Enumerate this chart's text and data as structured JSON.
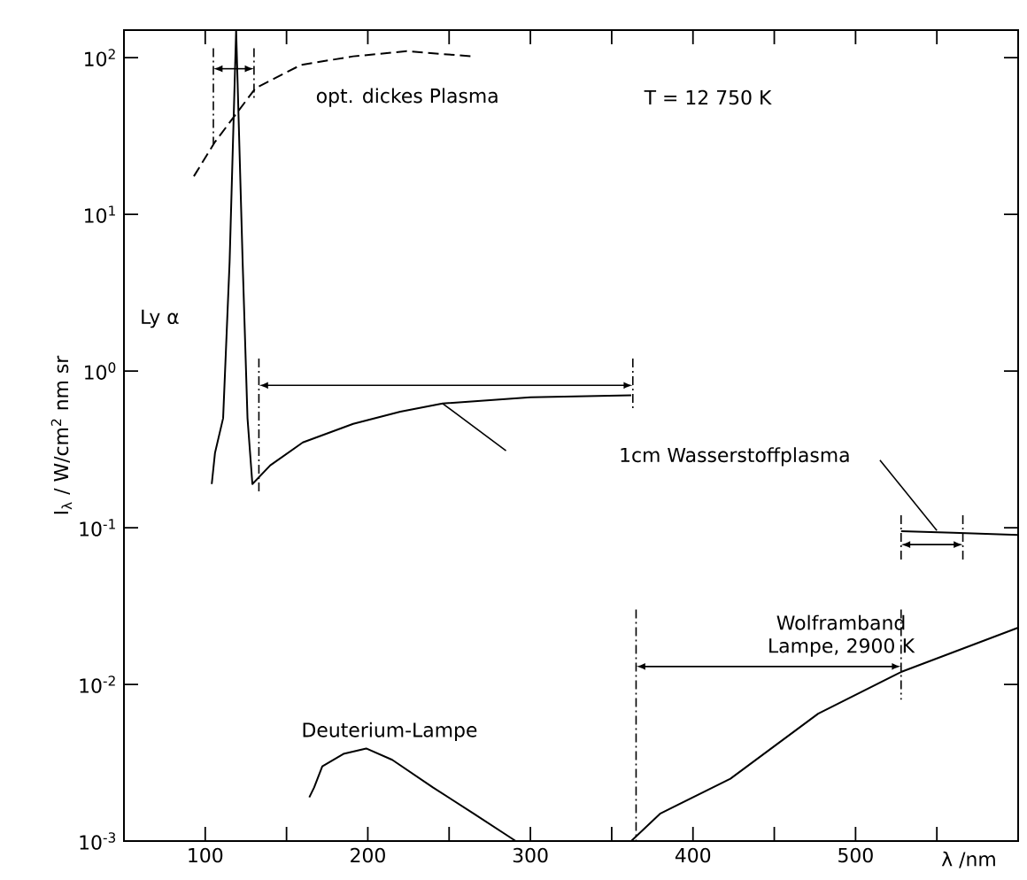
{
  "chart_data": {
    "type": "line",
    "ylabel": "I$_{λ}$ / W/cm$^{2}$ nm sr",
    "xlabel": "λ /nm",
    "log": "y",
    "xlim": [
      50,
      600
    ],
    "ylim": [
      0.001,
      150
    ],
    "xticks": [
      100,
      {
        "value": 150,
        "label": null
      },
      200,
      {
        "value": 250,
        "label": null
      },
      300,
      {
        "value": 350,
        "label": null
      },
      400,
      {
        "value": 450,
        "label": null
      },
      500,
      {
        "value": 550,
        "label": null
      }
    ],
    "yticks": [
      {
        "value": 0.001,
        "label": "10$^{-3}$"
      },
      {
        "value": 0.01,
        "label": "10$^{-2}$"
      },
      {
        "value": 0.1,
        "label": "10$^{-1}$"
      },
      {
        "value": 1,
        "label": "10$^{0}$"
      },
      {
        "value": 10,
        "label": "10$^{1}$"
      },
      {
        "value": 100,
        "label": "10$^{2}$"
      }
    ],
    "series": [
      {
        "color": "#000000",
        "line_style": "dashed",
        "x": [
          93,
          106,
          131,
          159,
          191,
          224,
          264
        ],
        "values": [
          17.5,
          29,
          64,
          90,
          102,
          110,
          102
        ]
      },
      {
        "color": "#000000",
        "line_style": "solid",
        "x": [
          104,
          106,
          111,
          115,
          119,
          123,
          126,
          129,
          140,
          160,
          191,
          220,
          246,
          300,
          362,
          400,
          528,
          560,
          600
        ],
        "values": [
          0.19,
          0.3,
          0.5,
          5,
          150,
          5,
          0.5,
          0.19,
          0.25,
          0.35,
          0.46,
          0.55,
          0.62,
          0.68,
          0.7,
          null,
          0.095,
          0.093,
          0.09
        ]
      },
      {
        "color": "#000000",
        "line_style": "solid",
        "x": [
          164,
          167,
          172,
          185,
          199,
          215,
          240,
          265,
          291
        ],
        "values": [
          0.0019,
          0.0022,
          0.003,
          0.0036,
          0.0039,
          0.0033,
          0.0022,
          0.0015,
          0.001
        ]
      },
      {
        "color": "#000000",
        "line_style": "solid",
        "x": [
          362,
          380,
          423,
          477,
          528,
          600
        ],
        "values": [
          0.001,
          0.0015,
          0.0025,
          0.0065,
          0.012,
          0.023
        ]
      }
    ],
    "annotations": [
      "opt. dickes Plasma",
      "T = 12 750 K",
      "Ly α",
      "1cm Wasserstoffplasma",
      "Deuterium-Lampe",
      "Wolframband Lampe, 2900 K"
    ]
  }
}
